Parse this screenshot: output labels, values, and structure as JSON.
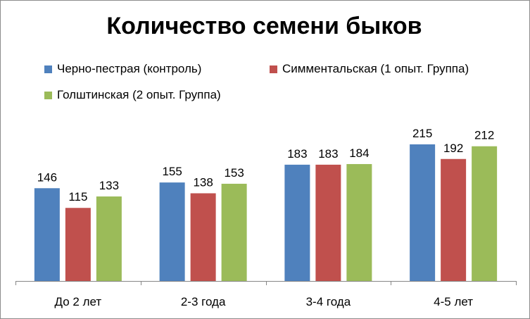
{
  "chart_data": {
    "type": "bar",
    "title": "Количество семени быков",
    "categories": [
      "До 2 лет",
      "2-3 года",
      "3-4 года",
      "4-5 лет"
    ],
    "series": [
      {
        "name": "Черно-пестрая (контроль)",
        "color": "#4f81bd",
        "values": [
          146,
          155,
          183,
          215
        ]
      },
      {
        "name": "Симментальская (1 опыт. Группа)",
        "color": "#c0504d",
        "values": [
          115,
          138,
          183,
          192
        ]
      },
      {
        "name": "Голштинская (2 опыт. Группа)",
        "color": "#9bbb59",
        "values": [
          133,
          153,
          184,
          212
        ]
      }
    ],
    "ylim": [
      0,
      250
    ],
    "grid": false,
    "legend": "top",
    "xlabel": "",
    "ylabel": ""
  }
}
